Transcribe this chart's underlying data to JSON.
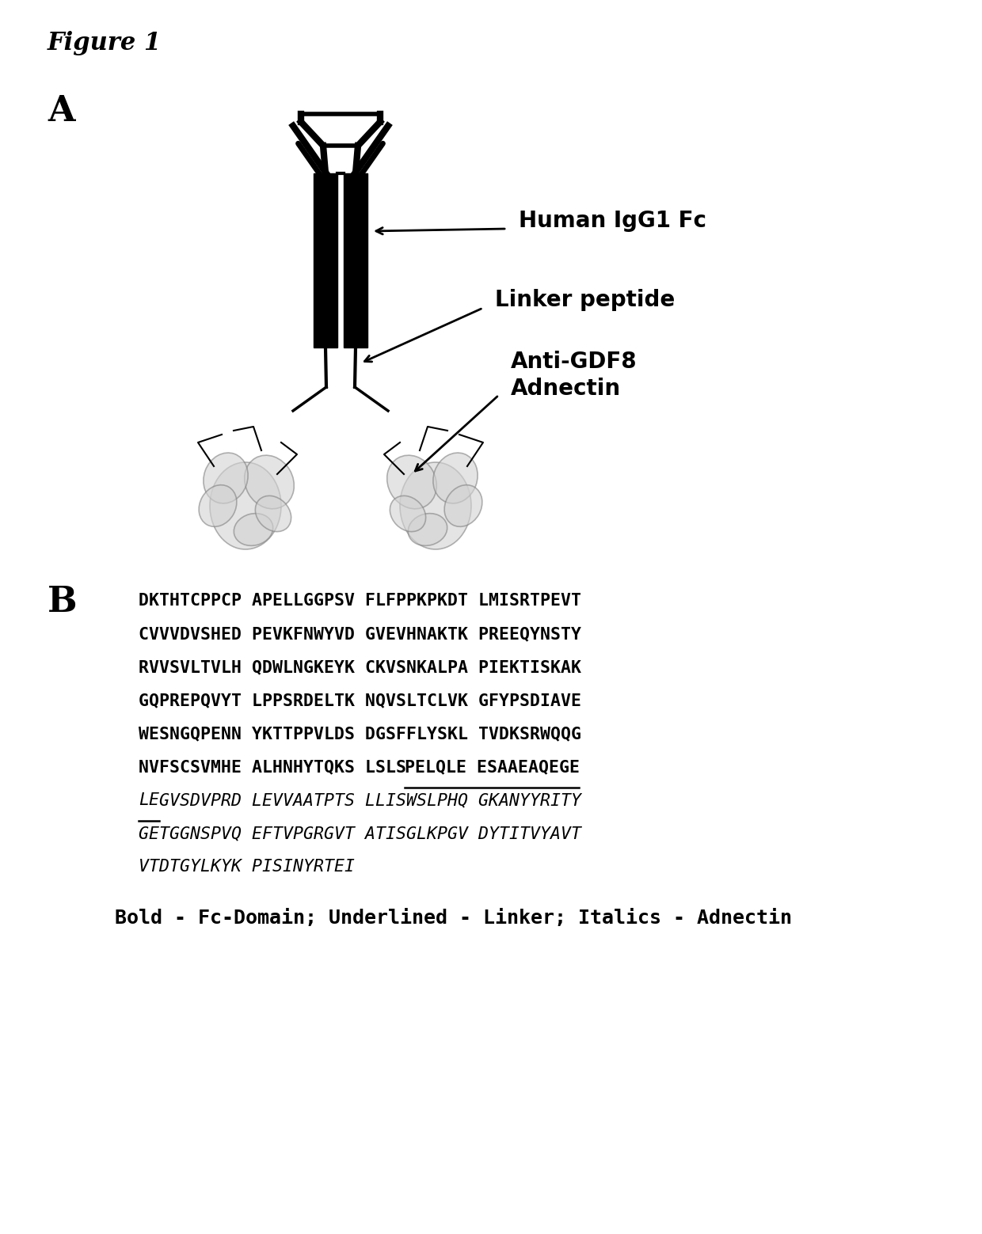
{
  "figure_title": "Figure 1",
  "panel_a_label": "A",
  "panel_b_label": "B",
  "label_human_igG1": "Human IgG1 Fc",
  "label_linker": "Linker peptide",
  "label_adnectin": "Anti-GDF8\nAdnectin",
  "bold_rows": [
    "DKTHTCPPCP APELLGGPSV FLFPPKPKDT LMISRTPEVT",
    "CVVVDVSHED PEVKFNWYVD GVEVHNAKTK PREEQYNSTY",
    "RVVSVLTVLH QDWLNGKEYK CKVSNKALPA PIEKTISKAK",
    "GQPREPQVYT LPPSRDELTK NQVSLTCLVK GFYPSDIAVE",
    "WESNGQPENN YKTTPPVLDS DGSFFLYSKL TVDKSRWQQG"
  ],
  "mixed_row_bold": "NVFSCSVMHE ALHNHYTQKS LSLS",
  "mixed_row_underline": "PELQLE ESAAEAQEGE",
  "italic_underline_row_ul": "LE",
  "italic_underline_row_rest": "GVSDVPRD LEVVAATPTS LLISWSLPHQ GKANYYRITY",
  "italic_rows": [
    "GETGGNSPVQ EFTVPGRGVT ATISGLKPGV DYTITVYAVT",
    "VTDTGYLKYK PISINYRTEI"
  ],
  "legend_text": "Bold - Fc-Domain; Underlined - Linker; Italics - Adnectin",
  "bg_color": "#ffffff",
  "text_color": "#000000"
}
